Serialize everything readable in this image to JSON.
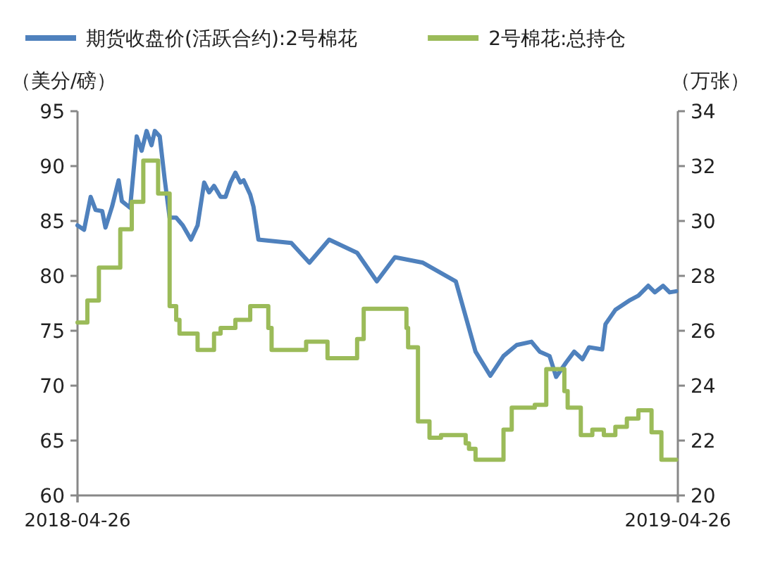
{
  "chart_data": {
    "type": "line",
    "legend": "top",
    "grid": false,
    "marker": "none",
    "line_style": "solid",
    "ylabel": "（美分/磅）",
    "y2label": "（万张）",
    "xlim": [
      "2018-04-26",
      "2019-04-26"
    ],
    "xticks": [
      "2018-04-26",
      "2019-04-26"
    ],
    "ylim": [
      60,
      95
    ],
    "yticks": [
      60,
      65,
      70,
      75,
      80,
      85,
      90,
      95
    ],
    "y2lim": [
      20,
      34
    ],
    "y2ticks": [
      20,
      22,
      24,
      26,
      28,
      30,
      32,
      34
    ],
    "series": [
      {
        "name": "期货收盘价(活跃合约):2号棉花",
        "color": "#4f81bd",
        "x": [
          "2018-04-26",
          "2018-04-30",
          "2018-05-04",
          "2018-05-07",
          "2018-05-11",
          "2018-05-13",
          "2018-05-17",
          "2018-05-21",
          "2018-05-23",
          "2018-05-28",
          "2018-06-01",
          "2018-06-04",
          "2018-06-07",
          "2018-06-10",
          "2018-06-12",
          "2018-06-15",
          "2018-06-18",
          "2018-06-21",
          "2018-06-25",
          "2018-06-29",
          "2018-07-04",
          "2018-07-08",
          "2018-07-12",
          "2018-07-15",
          "2018-07-18",
          "2018-07-22",
          "2018-07-25",
          "2018-07-28",
          "2018-07-31",
          "2018-08-03",
          "2018-08-05",
          "2018-08-09",
          "2018-08-11",
          "2018-08-14",
          "2018-09-03",
          "2018-09-14",
          "2018-09-26",
          "2018-10-13",
          "2018-10-25",
          "2018-11-05",
          "2018-11-22",
          "2018-12-12",
          "2018-12-24",
          "2019-01-02",
          "2019-01-10",
          "2019-01-18",
          "2019-01-27",
          "2019-02-01",
          "2019-02-07",
          "2019-02-11",
          "2019-02-17",
          "2019-02-22",
          "2019-02-27",
          "2019-03-03",
          "2019-03-11",
          "2019-03-13",
          "2019-03-19",
          "2019-03-28",
          "2019-04-02",
          "2019-04-08",
          "2019-04-12",
          "2019-04-17",
          "2019-04-21",
          "2019-04-25"
        ],
        "values": [
          84.6,
          84.2,
          87.2,
          86.0,
          85.9,
          84.4,
          86.3,
          88.7,
          86.8,
          86.2,
          92.7,
          91.4,
          93.2,
          91.9,
          93.2,
          92.7,
          88.8,
          85.3,
          85.3,
          84.6,
          83.3,
          84.6,
          88.5,
          87.6,
          88.2,
          87.2,
          87.2,
          88.5,
          89.4,
          88.5,
          88.7,
          87.4,
          86.3,
          83.3,
          83.0,
          81.2,
          83.3,
          82.1,
          79.5,
          81.7,
          81.2,
          79.5,
          73.1,
          70.9,
          72.7,
          73.7,
          74.0,
          73.1,
          72.7,
          70.8,
          72.1,
          73.1,
          72.4,
          73.5,
          73.3,
          75.6,
          76.9,
          77.8,
          78.2,
          79.1,
          78.5,
          79.1,
          78.5,
          78.6
        ]
      },
      {
        "name": "2号棉花:总持仓",
        "color": "#9bbb59",
        "type": "step",
        "axis": "y2",
        "x": [
          "2018-04-26",
          "2018-05-02",
          "2018-05-09",
          "2018-05-22",
          "2018-05-29",
          "2018-06-05",
          "2018-06-14",
          "2018-06-21",
          "2018-06-25",
          "2018-06-27",
          "2018-07-08",
          "2018-07-18",
          "2018-07-22",
          "2018-07-31",
          "2018-08-09",
          "2018-08-20",
          "2018-08-22",
          "2018-09-12",
          "2018-09-25",
          "2018-10-13",
          "2018-10-17",
          "2018-11-12",
          "2018-11-13",
          "2018-11-19",
          "2018-11-26",
          "2018-12-03",
          "2018-12-18",
          "2018-12-20",
          "2018-12-24",
          "2019-01-10",
          "2019-01-15",
          "2019-01-29",
          "2019-02-05",
          "2019-02-16",
          "2019-02-18",
          "2019-02-26",
          "2019-03-05",
          "2019-03-12",
          "2019-03-19",
          "2019-03-26",
          "2019-04-02",
          "2019-04-10",
          "2019-04-16",
          "2019-04-25"
        ],
        "values": [
          26.3,
          27.1,
          28.3,
          29.7,
          30.7,
          32.2,
          31.0,
          26.9,
          26.4,
          25.9,
          25.3,
          25.9,
          26.1,
          26.4,
          26.9,
          26.1,
          25.3,
          25.6,
          25.0,
          25.7,
          26.8,
          26.1,
          25.4,
          22.7,
          22.1,
          22.2,
          21.9,
          21.7,
          21.3,
          22.4,
          23.2,
          23.3,
          24.6,
          23.8,
          23.2,
          22.2,
          22.4,
          22.2,
          22.5,
          22.8,
          23.1,
          22.3,
          21.3,
          21.3
        ]
      }
    ]
  }
}
